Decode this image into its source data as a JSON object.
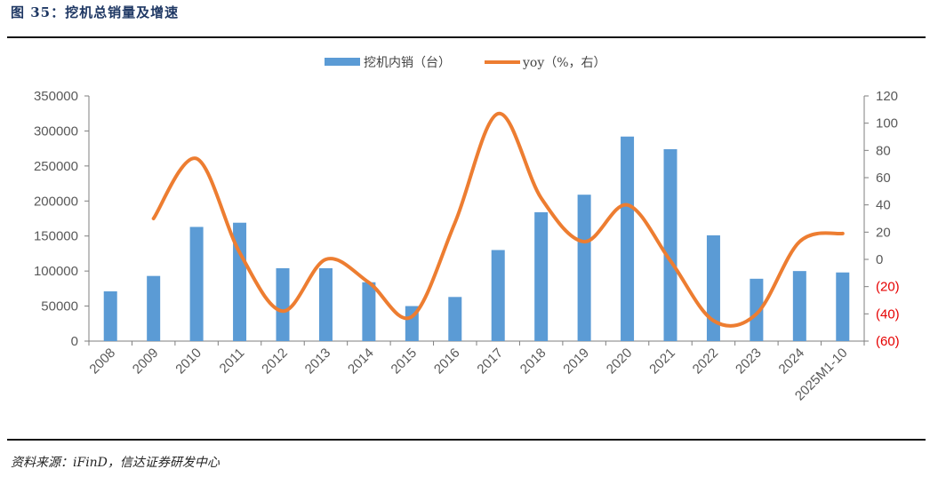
{
  "header": {
    "title": "图 35：挖机总销量及增速"
  },
  "footer": {
    "source": "资料来源：iFinD，信达证券研发中心"
  },
  "chart_data": {
    "type": "bar+line",
    "title": "挖机总销量及增速",
    "categories": [
      "2008",
      "2009",
      "2010",
      "2011",
      "2012",
      "2013",
      "2014",
      "2015",
      "2016",
      "2017",
      "2018",
      "2019",
      "2020",
      "2021",
      "2022",
      "2023",
      "2024",
      "2025M1-10"
    ],
    "series": [
      {
        "name": "挖机内销（台）",
        "type": "bar",
        "axis": "left",
        "color": "#5b9bd5",
        "values": [
          71000,
          93000,
          163000,
          169000,
          104000,
          104000,
          84000,
          50000,
          63000,
          130000,
          184000,
          209000,
          292000,
          274000,
          151000,
          89000,
          100000,
          98000
        ]
      },
      {
        "name": "yoy（%，右）",
        "type": "line",
        "axis": "right",
        "color": "#ed7d31",
        "values": [
          null,
          30,
          74,
          5,
          -38,
          0,
          -17,
          -42,
          27,
          107,
          45,
          13,
          40,
          -1,
          -45,
          -40,
          13,
          19
        ]
      }
    ],
    "left_axis": {
      "min": 0,
      "max": 350000,
      "step": 50000,
      "tick_labels": [
        "0",
        "50000",
        "100000",
        "150000",
        "200000",
        "250000",
        "300000",
        "350000"
      ]
    },
    "right_axis": {
      "min": -60,
      "max": 120,
      "step": 20,
      "tick_labels": [
        "(60)",
        "(40)",
        "(20)",
        "0",
        "20",
        "40",
        "60",
        "80",
        "100",
        "120"
      ]
    },
    "legend": {
      "position": "top-center",
      "labels": [
        "挖机内销（台）",
        "yoy（%，右）"
      ]
    },
    "grid": false
  }
}
